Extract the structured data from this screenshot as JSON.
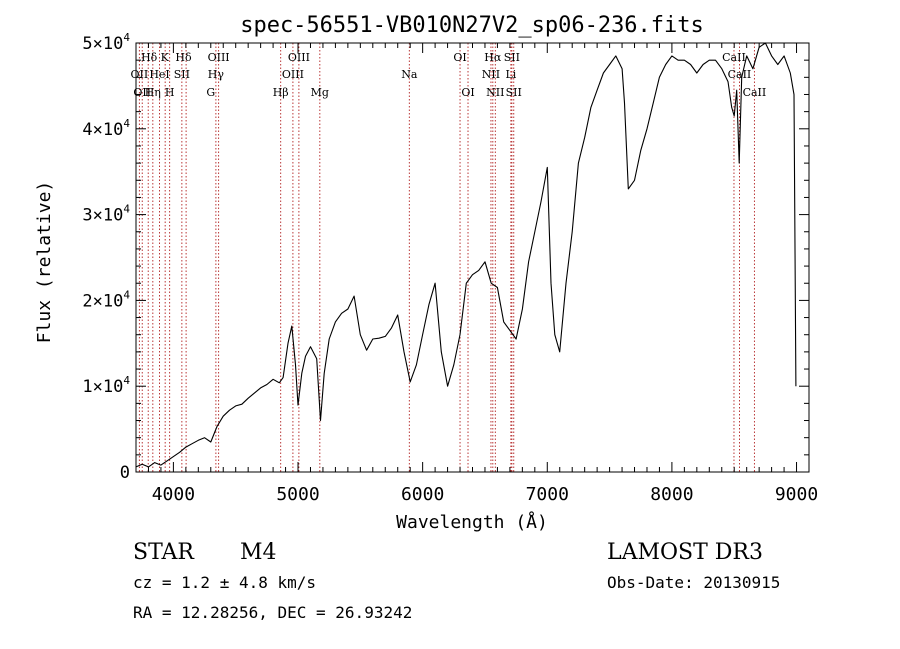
{
  "chart_data": {
    "type": "line",
    "title": "spec-56551-VB010N27V2_sp06-236.fits",
    "xlabel": "Wavelength (Å)",
    "ylabel": "Flux (relative)",
    "xlim": [
      3700,
      9100
    ],
    "ylim": [
      0,
      50000
    ],
    "x_ticks": [
      4000,
      5000,
      6000,
      7000,
      8000,
      9000
    ],
    "x_tick_labels": [
      "4000",
      "5000",
      "6000",
      "7000",
      "8000",
      "9000"
    ],
    "y_ticks": [
      0,
      10000,
      20000,
      30000,
      40000,
      50000
    ],
    "y_tick_labels": [
      {
        "mantissa": "0",
        "exp": ""
      },
      {
        "mantissa": "1×10",
        "exp": "4"
      },
      {
        "mantissa": "2×10",
        "exp": "4"
      },
      {
        "mantissa": "3×10",
        "exp": "4"
      },
      {
        "mantissa": "4×10",
        "exp": "4"
      },
      {
        "mantissa": "5×10",
        "exp": "4"
      }
    ],
    "series": [
      {
        "name": "flux",
        "color": "#000000",
        "points": [
          [
            3700,
            600
          ],
          [
            3750,
            900
          ],
          [
            3800,
            600
          ],
          [
            3850,
            1100
          ],
          [
            3900,
            800
          ],
          [
            3950,
            1300
          ],
          [
            4000,
            1800
          ],
          [
            4050,
            2300
          ],
          [
            4100,
            2900
          ],
          [
            4150,
            3300
          ],
          [
            4200,
            3700
          ],
          [
            4250,
            4000
          ],
          [
            4300,
            3500
          ],
          [
            4350,
            5300
          ],
          [
            4400,
            6500
          ],
          [
            4450,
            7200
          ],
          [
            4500,
            7700
          ],
          [
            4550,
            7900
          ],
          [
            4600,
            8600
          ],
          [
            4650,
            9200
          ],
          [
            4700,
            9800
          ],
          [
            4750,
            10200
          ],
          [
            4800,
            10800
          ],
          [
            4850,
            10400
          ],
          [
            4880,
            11000
          ],
          [
            4920,
            15000
          ],
          [
            4950,
            17000
          ],
          [
            4980,
            12500
          ],
          [
            5000,
            7800
          ],
          [
            5030,
            11500
          ],
          [
            5060,
            13500
          ],
          [
            5100,
            14600
          ],
          [
            5150,
            13200
          ],
          [
            5180,
            6000
          ],
          [
            5210,
            11500
          ],
          [
            5250,
            15500
          ],
          [
            5300,
            17500
          ],
          [
            5350,
            18500
          ],
          [
            5400,
            19000
          ],
          [
            5450,
            20500
          ],
          [
            5500,
            16000
          ],
          [
            5550,
            14200
          ],
          [
            5600,
            15500
          ],
          [
            5650,
            15600
          ],
          [
            5700,
            15800
          ],
          [
            5750,
            16800
          ],
          [
            5800,
            18300
          ],
          [
            5850,
            14000
          ],
          [
            5900,
            10500
          ],
          [
            5950,
            12500
          ],
          [
            6000,
            16000
          ],
          [
            6050,
            19500
          ],
          [
            6100,
            22000
          ],
          [
            6150,
            14000
          ],
          [
            6200,
            10000
          ],
          [
            6250,
            12500
          ],
          [
            6300,
            16000
          ],
          [
            6350,
            22000
          ],
          [
            6400,
            23000
          ],
          [
            6450,
            23500
          ],
          [
            6500,
            24500
          ],
          [
            6550,
            22000
          ],
          [
            6600,
            21500
          ],
          [
            6650,
            17500
          ],
          [
            6700,
            16500
          ],
          [
            6750,
            15500
          ],
          [
            6800,
            19000
          ],
          [
            6850,
            24500
          ],
          [
            6900,
            28000
          ],
          [
            6950,
            31500
          ],
          [
            7000,
            35500
          ],
          [
            7030,
            22000
          ],
          [
            7060,
            16000
          ],
          [
            7100,
            14000
          ],
          [
            7150,
            22000
          ],
          [
            7200,
            28000
          ],
          [
            7250,
            36000
          ],
          [
            7300,
            39000
          ],
          [
            7350,
            42500
          ],
          [
            7400,
            44500
          ],
          [
            7450,
            46500
          ],
          [
            7500,
            47500
          ],
          [
            7550,
            48500
          ],
          [
            7600,
            47000
          ],
          [
            7620,
            43000
          ],
          [
            7650,
            33000
          ],
          [
            7700,
            34000
          ],
          [
            7750,
            37500
          ],
          [
            7800,
            40000
          ],
          [
            7850,
            43000
          ],
          [
            7900,
            46000
          ],
          [
            7950,
            47500
          ],
          [
            8000,
            48500
          ],
          [
            8050,
            48000
          ],
          [
            8100,
            48000
          ],
          [
            8150,
            47500
          ],
          [
            8200,
            46500
          ],
          [
            8250,
            47500
          ],
          [
            8300,
            48000
          ],
          [
            8350,
            48000
          ],
          [
            8400,
            47000
          ],
          [
            8450,
            45500
          ],
          [
            8480,
            42500
          ],
          [
            8500,
            41500
          ],
          [
            8520,
            44500
          ],
          [
            8540,
            36000
          ],
          [
            8560,
            46000
          ],
          [
            8600,
            48500
          ],
          [
            8650,
            47000
          ],
          [
            8700,
            49500
          ],
          [
            8750,
            50000
          ],
          [
            8800,
            48500
          ],
          [
            8850,
            47500
          ],
          [
            8900,
            48500
          ],
          [
            8950,
            46500
          ],
          [
            8980,
            44000
          ],
          [
            8995,
            10000
          ]
        ]
      }
    ],
    "annotation_lines_x": [
      3727,
      3750,
      3798,
      3835,
      3889,
      3934,
      3970,
      4068,
      4102,
      4341,
      4363,
      4861,
      4959,
      5007,
      5175,
      5893,
      6300,
      6364,
      6548,
      6563,
      6583,
      6708,
      6716,
      6731,
      8498,
      8542,
      8662
    ],
    "annotations": [
      {
        "text": "Hδ",
        "x": 3806,
        "row": 0
      },
      {
        "text": "K",
        "x": 3931,
        "row": 0
      },
      {
        "text": "Hδ",
        "x": 4081,
        "row": 0
      },
      {
        "text": "OIII",
        "x": 4363,
        "row": 0
      },
      {
        "text": "OIII",
        "x": 5007,
        "row": 0
      },
      {
        "text": "OI",
        "x": 6300,
        "row": 0
      },
      {
        "text": "Hα",
        "x": 6563,
        "row": 0
      },
      {
        "text": "SII",
        "x": 6716,
        "row": 0
      },
      {
        "text": "CaII",
        "x": 8498,
        "row": 0
      },
      {
        "text": "OII",
        "x": 3727,
        "row": 1
      },
      {
        "text": "HeI",
        "x": 3889,
        "row": 1
      },
      {
        "text": "SII",
        "x": 4068,
        "row": 1
      },
      {
        "text": "Hγ",
        "x": 4341,
        "row": 1
      },
      {
        "text": "OIII",
        "x": 4959,
        "row": 1
      },
      {
        "text": "Na",
        "x": 5893,
        "row": 1
      },
      {
        "text": "NII",
        "x": 6548,
        "row": 1
      },
      {
        "text": "Li",
        "x": 6708,
        "row": 1
      },
      {
        "text": "CaII",
        "x": 8542,
        "row": 1
      },
      {
        "text": "OII",
        "x": 3750,
        "row": 2
      },
      {
        "text": "Hη",
        "x": 3835,
        "row": 2
      },
      {
        "text": "H",
        "x": 3970,
        "row": 2
      },
      {
        "text": "G",
        "x": 4300,
        "row": 2
      },
      {
        "text": "Hβ",
        "x": 4861,
        "row": 2
      },
      {
        "text": "Mg",
        "x": 5175,
        "row": 2
      },
      {
        "text": "OI",
        "x": 6364,
        "row": 2
      },
      {
        "text": "NII",
        "x": 6583,
        "row": 2
      },
      {
        "text": "SII",
        "x": 6731,
        "row": 2
      },
      {
        "text": "CaII",
        "x": 8662,
        "row": 2
      }
    ],
    "line_color": "#b22222"
  },
  "info": {
    "object_class": "STAR",
    "subclass": "M4",
    "survey": "LAMOST DR3",
    "redshift": "cz = 1.2 ± 4.8 km/s",
    "obs_date": "Obs-Date: 20130915",
    "coords": "RA =  12.28256, DEC =  26.93242"
  }
}
